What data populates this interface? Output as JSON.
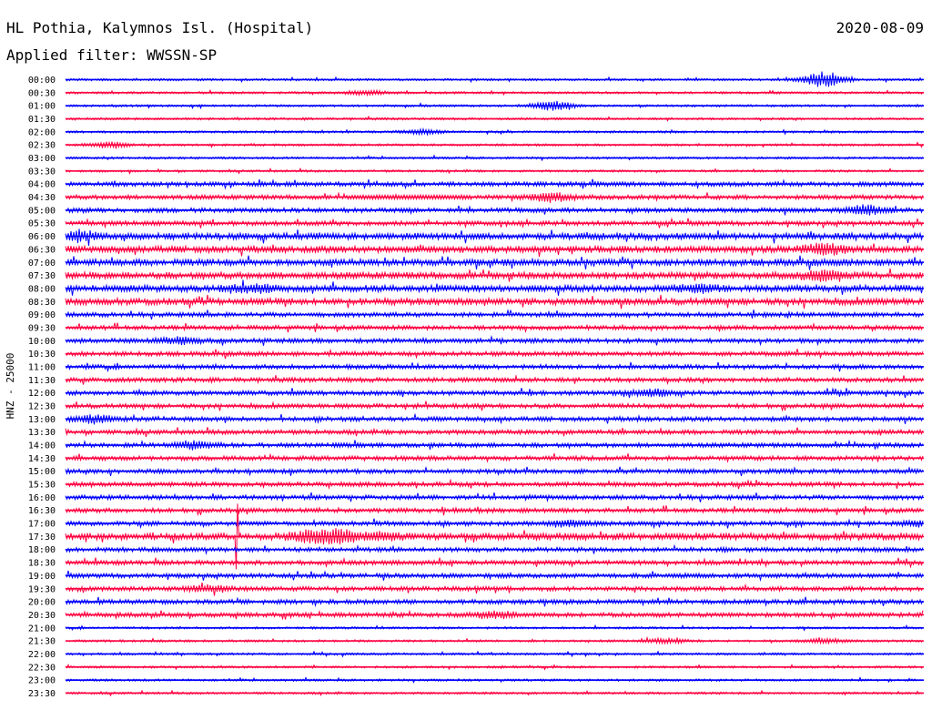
{
  "header": {
    "station": "HL Pothia, Kalymnos Isl. (Hospital)",
    "date": "2020-08-09",
    "filter": "Applied filter: WWSSN-SP"
  },
  "colors": {
    "trace_even": "#0000ff",
    "trace_odd": "#ff0040",
    "text": "#000000",
    "background": "#ffffff"
  },
  "chart_data": {
    "type": "line",
    "title": "HL Pothia, Kalymnos Isl. (Hospital)",
    "subtitle": "Applied filter: WWSSN-SP",
    "ylabel": "HNZ - 25000",
    "xlabel": "",
    "grid": false,
    "row_interval_minutes": 30,
    "row_labels": [
      "00:00",
      "00:30",
      "01:00",
      "01:30",
      "02:00",
      "02:30",
      "03:00",
      "03:30",
      "04:00",
      "04:30",
      "05:00",
      "05:30",
      "06:00",
      "06:30",
      "07:00",
      "07:30",
      "08:00",
      "08:30",
      "09:00",
      "09:30",
      "10:00",
      "10:30",
      "11:00",
      "11:30",
      "12:00",
      "12:30",
      "13:00",
      "13:30",
      "14:00",
      "14:30",
      "15:00",
      "15:30",
      "16:00",
      "16:30",
      "17:00",
      "17:30",
      "18:00",
      "18:30",
      "19:00",
      "19:30",
      "20:00",
      "20:30",
      "21:00",
      "21:30",
      "22:00",
      "22:30",
      "23:00",
      "23:30"
    ],
    "color_pattern": [
      "blue",
      "red"
    ],
    "noise_level": [
      1,
      1,
      1,
      1,
      1,
      1,
      1,
      1,
      2,
      2,
      2,
      2,
      3,
      3,
      3,
      3,
      3,
      3,
      2,
      2,
      2,
      2,
      2,
      2,
      2,
      2,
      2,
      2,
      2,
      2,
      2,
      2,
      2,
      2,
      2,
      3,
      2,
      2,
      2,
      2,
      2,
      2,
      1,
      1,
      1,
      1,
      1,
      1
    ],
    "events": [
      {
        "row": 0,
        "minute": 26.5,
        "amplitude": 6.0
      },
      {
        "row": 1,
        "minute": 10.5,
        "amplitude": 1.5
      },
      {
        "row": 2,
        "minute": 17.0,
        "amplitude": 3.5
      },
      {
        "row": 4,
        "minute": 12.5,
        "amplitude": 1.5
      },
      {
        "row": 5,
        "minute": 1.5,
        "amplitude": 2.0
      },
      {
        "row": 9,
        "minute": 12.0,
        "amplitude": 2.0,
        "duration": 4.0
      },
      {
        "row": 9,
        "minute": 17.0,
        "amplitude": 3.0
      },
      {
        "row": 10,
        "minute": 28.0,
        "amplitude": 3.0
      },
      {
        "row": 12,
        "minute": 0.5,
        "amplitude": 2.5
      },
      {
        "row": 13,
        "minute": 26.5,
        "amplitude": 3.5
      },
      {
        "row": 15,
        "minute": 26.5,
        "amplitude": 3.5
      },
      {
        "row": 16,
        "minute": 6.5,
        "amplitude": 2.5
      },
      {
        "row": 16,
        "minute": 22.0,
        "amplitude": 2.0
      },
      {
        "row": 20,
        "minute": 4.0,
        "amplitude": 2.5
      },
      {
        "row": 24,
        "minute": 20.5,
        "amplitude": 2.5
      },
      {
        "row": 26,
        "minute": 1.0,
        "amplitude": 2.5
      },
      {
        "row": 28,
        "minute": 4.5,
        "amplitude": 2.5
      },
      {
        "row": 34,
        "minute": 17.5,
        "amplitude": 2.0
      },
      {
        "row": 34,
        "minute": 30.0,
        "amplitude": 2.0
      },
      {
        "row": 35,
        "minute": 8.5,
        "amplitude": 3.0
      },
      {
        "row": 35,
        "minute": 9.5,
        "amplitude": 4.5
      },
      {
        "row": 35,
        "minute": 11.0,
        "amplitude": 2.0
      },
      {
        "row": 35,
        "minute": 6.0,
        "amplitude": 8.0,
        "spike": true
      },
      {
        "row": 39,
        "minute": 5.0,
        "amplitude": 2.0
      },
      {
        "row": 41,
        "minute": 15.0,
        "amplitude": 2.5
      },
      {
        "row": 43,
        "minute": 21.0,
        "amplitude": 1.5
      },
      {
        "row": 43,
        "minute": 26.5,
        "amplitude": 1.5
      }
    ]
  }
}
